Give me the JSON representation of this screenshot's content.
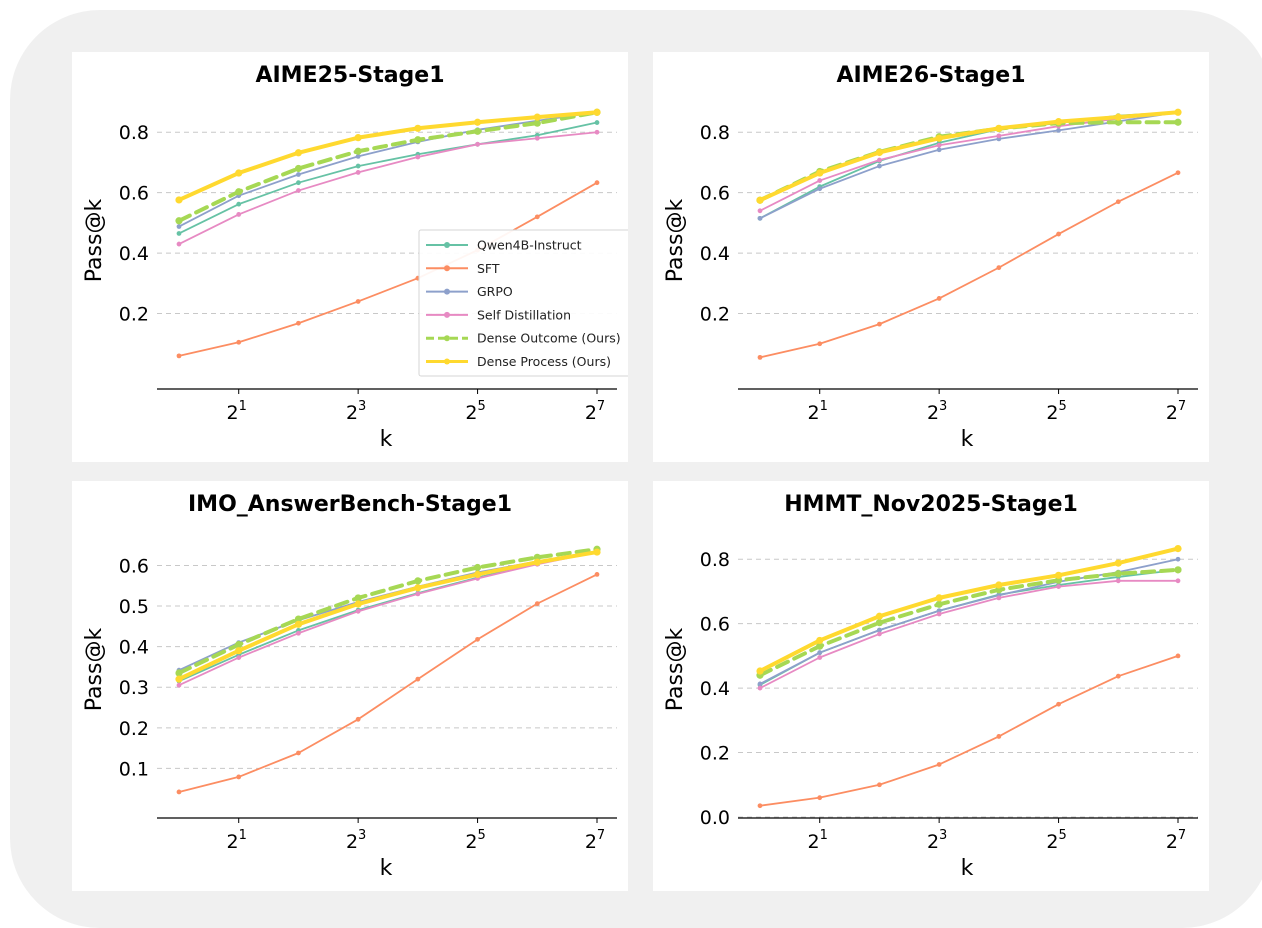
{
  "chart_data": [
    {
      "type": "line",
      "title": "AIME25-Stage1",
      "xlabel": "k",
      "ylabel": "Pass@k",
      "x": [
        1,
        2,
        4,
        8,
        16,
        32,
        64,
        128
      ],
      "x_scale": "log2",
      "x_ticks": [
        2,
        8,
        32,
        128
      ],
      "ylim": [
        0.0,
        0.9
      ],
      "y_ticks": [
        0.2,
        0.4,
        0.6,
        0.8
      ],
      "grid": "horizontal dashed",
      "legend": "center-right",
      "series": [
        {
          "name": "Qwen4B-Instruct",
          "values": [
            0.465,
            0.562,
            0.633,
            0.688,
            0.727,
            0.76,
            0.79,
            0.832
          ]
        },
        {
          "name": "SFT",
          "values": [
            0.06,
            0.105,
            0.168,
            0.24,
            0.317,
            0.41,
            0.52,
            0.633
          ]
        },
        {
          "name": "GRPO",
          "values": [
            0.488,
            0.59,
            0.66,
            0.72,
            0.768,
            0.808,
            0.838,
            0.866
          ]
        },
        {
          "name": "Self Distillation",
          "values": [
            0.43,
            0.528,
            0.607,
            0.667,
            0.718,
            0.76,
            0.78,
            0.8
          ]
        },
        {
          "name": "Dense Outcome (Ours)",
          "values": [
            0.507,
            0.603,
            0.68,
            0.737,
            0.775,
            0.803,
            0.83,
            0.866
          ]
        },
        {
          "name": "Dense Process (Ours)",
          "values": [
            0.576,
            0.665,
            0.732,
            0.782,
            0.813,
            0.833,
            0.85,
            0.866
          ]
        }
      ]
    },
    {
      "type": "line",
      "title": "AIME26-Stage1",
      "xlabel": "k",
      "ylabel": "Pass@k",
      "x": [
        1,
        2,
        4,
        8,
        16,
        32,
        64,
        128
      ],
      "x_scale": "log2",
      "x_ticks": [
        2,
        8,
        32,
        128
      ],
      "ylim": [
        0.0,
        0.9
      ],
      "y_ticks": [
        0.2,
        0.4,
        0.6,
        0.8
      ],
      "grid": "horizontal dashed",
      "series": [
        {
          "name": "Qwen4B-Instruct",
          "values": [
            0.515,
            0.62,
            0.705,
            0.765,
            0.81,
            0.83,
            0.855,
            0.866
          ]
        },
        {
          "name": "SFT",
          "values": [
            0.055,
            0.1,
            0.165,
            0.25,
            0.352,
            0.463,
            0.57,
            0.666
          ]
        },
        {
          "name": "GRPO",
          "values": [
            0.515,
            0.613,
            0.688,
            0.742,
            0.778,
            0.806,
            0.836,
            0.866
          ]
        },
        {
          "name": "Self Distillation",
          "values": [
            0.54,
            0.64,
            0.708,
            0.757,
            0.788,
            0.82,
            0.845,
            0.866
          ]
        },
        {
          "name": "Dense Outcome (Ours)",
          "values": [
            0.575,
            0.67,
            0.735,
            0.785,
            0.812,
            0.83,
            0.833,
            0.833
          ]
        },
        {
          "name": "Dense Process (Ours)",
          "values": [
            0.575,
            0.665,
            0.733,
            0.78,
            0.813,
            0.835,
            0.85,
            0.866
          ]
        }
      ]
    },
    {
      "type": "line",
      "title": "IMO_AnswerBench-Stage1",
      "xlabel": "k",
      "ylabel": "Pass@k",
      "x": [
        1,
        2,
        4,
        8,
        16,
        32,
        64,
        128
      ],
      "x_scale": "log2",
      "x_ticks": [
        2,
        8,
        32,
        128
      ],
      "ylim": [
        0.0,
        0.68
      ],
      "y_ticks": [
        0.1,
        0.2,
        0.3,
        0.4,
        0.5,
        0.6
      ],
      "grid": "horizontal dashed",
      "series": [
        {
          "name": "Qwen4B-Instruct",
          "values": [
            0.315,
            0.38,
            0.44,
            0.49,
            0.532,
            0.57,
            0.605,
            0.635
          ]
        },
        {
          "name": "SFT",
          "values": [
            0.042,
            0.079,
            0.138,
            0.221,
            0.32,
            0.418,
            0.506,
            0.578
          ]
        },
        {
          "name": "GRPO",
          "values": [
            0.342,
            0.41,
            0.465,
            0.51,
            0.548,
            0.583,
            0.61,
            0.635
          ]
        },
        {
          "name": "Self Distillation",
          "values": [
            0.305,
            0.373,
            0.433,
            0.487,
            0.53,
            0.568,
            0.603,
            0.633
          ]
        },
        {
          "name": "Dense Outcome (Ours)",
          "values": [
            0.335,
            0.405,
            0.468,
            0.52,
            0.562,
            0.595,
            0.62,
            0.64
          ]
        },
        {
          "name": "Dense Process (Ours)",
          "values": [
            0.32,
            0.39,
            0.455,
            0.505,
            0.545,
            0.578,
            0.608,
            0.633
          ]
        }
      ]
    },
    {
      "type": "line",
      "title": "HMMT_Nov2025-Stage1",
      "xlabel": "k",
      "ylabel": "Pass@k",
      "x": [
        1,
        2,
        4,
        8,
        16,
        32,
        64,
        128
      ],
      "x_scale": "log2",
      "x_ticks": [
        2,
        8,
        32,
        128
      ],
      "ylim": [
        0.0,
        0.9
      ],
      "y_ticks": [
        0.0,
        0.2,
        0.4,
        0.6,
        0.8
      ],
      "grid": "horizontal dashed",
      "series": [
        {
          "name": "Qwen4B-Instruct",
          "values": [
            0.41,
            0.51,
            0.58,
            0.64,
            0.69,
            0.72,
            0.745,
            0.767
          ]
        },
        {
          "name": "SFT",
          "values": [
            0.035,
            0.06,
            0.1,
            0.163,
            0.25,
            0.35,
            0.437,
            0.5
          ]
        },
        {
          "name": "GRPO",
          "values": [
            0.413,
            0.51,
            0.58,
            0.64,
            0.688,
            0.73,
            0.76,
            0.8
          ]
        },
        {
          "name": "Self Distillation",
          "values": [
            0.4,
            0.495,
            0.568,
            0.63,
            0.68,
            0.715,
            0.733,
            0.733
          ]
        },
        {
          "name": "Dense Outcome (Ours)",
          "values": [
            0.44,
            0.53,
            0.603,
            0.66,
            0.705,
            0.735,
            0.755,
            0.767
          ]
        },
        {
          "name": "Dense Process (Ours)",
          "values": [
            0.453,
            0.548,
            0.623,
            0.68,
            0.72,
            0.75,
            0.788,
            0.833
          ]
        }
      ]
    }
  ],
  "series_styles": [
    {
      "color": "#66c2a5",
      "dashed": false
    },
    {
      "color": "#fc8d62",
      "dashed": false
    },
    {
      "color": "#8da0cb",
      "dashed": false
    },
    {
      "color": "#e78ac3",
      "dashed": false
    },
    {
      "color": "#a6d854",
      "dashed": true
    },
    {
      "color": "#ffd92f",
      "dashed": false
    }
  ]
}
